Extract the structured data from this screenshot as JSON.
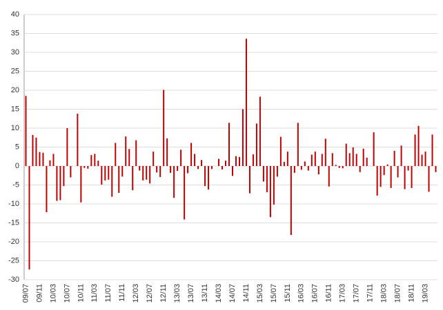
{
  "chart_data": {
    "type": "bar",
    "categories": [
      "09/07",
      null,
      null,
      null,
      "09/11",
      null,
      null,
      null,
      "10/03",
      null,
      null,
      null,
      "10/07",
      null,
      null,
      null,
      "10/11",
      null,
      null,
      null,
      "11/03",
      null,
      null,
      null,
      "11/07",
      null,
      null,
      null,
      "11/11",
      null,
      null,
      null,
      "12/03",
      null,
      null,
      null,
      "12/07",
      null,
      null,
      null,
      "12/11",
      null,
      null,
      null,
      "13/03",
      null,
      null,
      null,
      "13/07",
      null,
      null,
      null,
      "13/11",
      null,
      null,
      null,
      "14/03",
      null,
      null,
      null,
      "14/07",
      null,
      null,
      null,
      "14/11",
      null,
      null,
      null,
      "15/03",
      null,
      null,
      null,
      "15/07",
      null,
      null,
      null,
      "15/11",
      null,
      null,
      null,
      "16/03",
      null,
      null,
      null,
      "16/07",
      null,
      null,
      null,
      "16/11",
      null,
      null,
      null,
      "17/03",
      null,
      null,
      null,
      "17/07",
      null,
      null,
      null,
      "17/11",
      null,
      null,
      null,
      "18/03",
      null,
      null,
      null,
      "18/07",
      null,
      null,
      null,
      "18/11",
      null,
      null,
      null,
      "19/03",
      null,
      null,
      null
    ],
    "values": [
      18.5,
      -27.3,
      8.2,
      7.5,
      3.7,
      3.5,
      -12.2,
      1.5,
      3.2,
      -9.2,
      -9,
      -5.3,
      10,
      -3,
      0,
      13.8,
      -9.6,
      -0.5,
      -0.7,
      2.9,
      3.2,
      1.4,
      -4.9,
      -3.8,
      -3.6,
      -8.1,
      6.1,
      -7.1,
      -2.8,
      7.8,
      4.5,
      -6.4,
      6.8,
      -1.2,
      -3.8,
      -3.6,
      -4.6,
      3.8,
      -1.7,
      -2.9,
      20.1,
      7.3,
      -1.8,
      -8.4,
      -1.3,
      4.3,
      -14.1,
      -1.9,
      6.1,
      3.2,
      -0.8,
      1.6,
      -5.3,
      -6.2,
      -0.8,
      0,
      1.9,
      -0.9,
      1.4,
      11.4,
      -2.6,
      2.6,
      2.4,
      15,
      33.6,
      -7.2,
      3.1,
      11.2,
      18.3,
      -4.1,
      -6.9,
      -13.5,
      -10.2,
      -2.8,
      7.7,
      1.1,
      3.8,
      -18.2,
      -1.8,
      11.4,
      -1,
      1.2,
      -1.2,
      3,
      3.8,
      -2.2,
      3.2,
      7.2,
      -5.4,
      3.4,
      0.3,
      -0.5,
      -0.6,
      5.9,
      3.4,
      4.9,
      3.2,
      -1.6,
      4.6,
      2.2,
      0,
      8.9,
      -7.8,
      -5.5,
      -2.4,
      0.4,
      -5.8,
      4,
      -3,
      5.4,
      -6.1,
      -1.2,
      -5.8,
      8.3,
      10.6,
      3,
      3.8,
      -6.8,
      8.3,
      -1.6
    ],
    "color": "#c00000",
    "ylim": [
      -30,
      40
    ],
    "yticks": [
      -30,
      -25,
      -20,
      -15,
      -10,
      -5,
      0,
      5,
      10,
      15,
      20,
      25,
      30,
      35,
      40
    ],
    "grid": true
  }
}
